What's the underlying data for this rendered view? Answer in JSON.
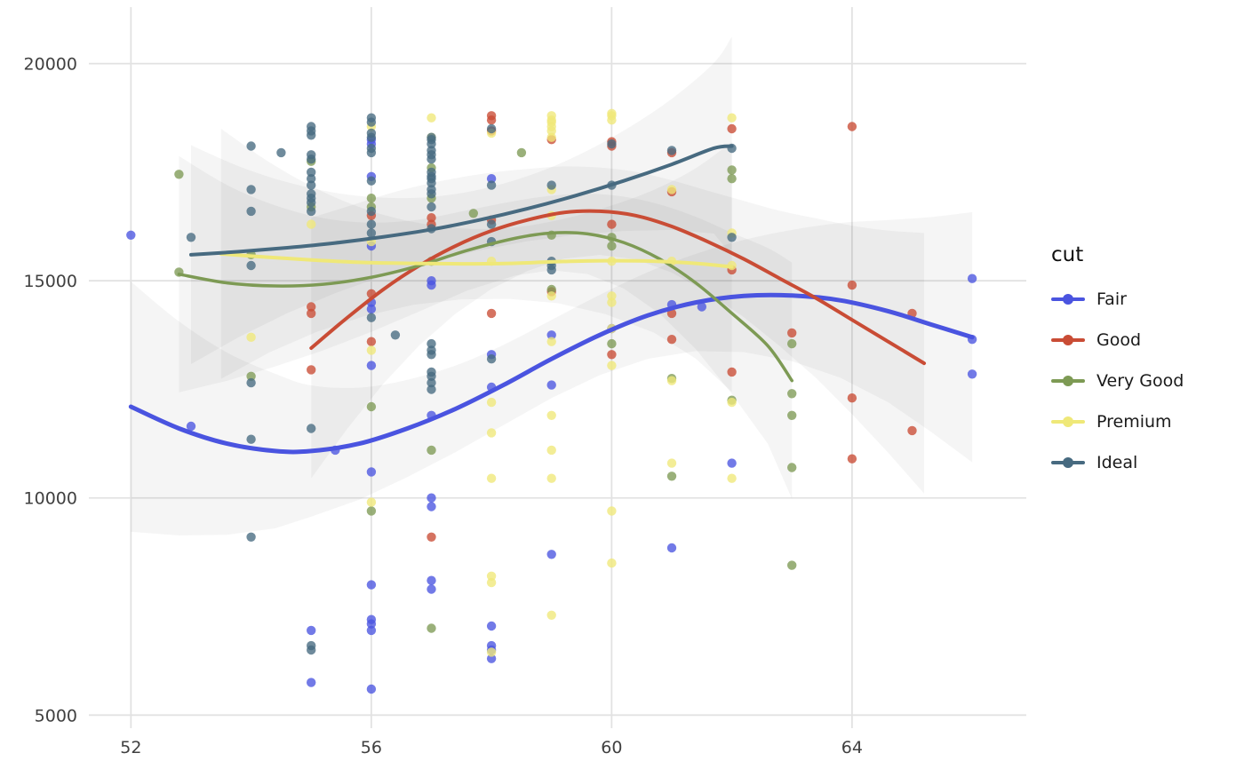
{
  "chart_data": {
    "type": "scatter",
    "title": "",
    "xlabel": "",
    "ylabel": "",
    "legend": {
      "title": "cut",
      "position": "right"
    },
    "axes": {
      "x": {
        "ticks": [
          52,
          56,
          60,
          64
        ],
        "range": [
          51.3,
          66.9
        ]
      },
      "y": {
        "ticks": [
          5000,
          10000,
          15000,
          20000
        ],
        "range": [
          4700,
          21300
        ]
      }
    },
    "grid": {
      "show": true,
      "color": "#e2e2e2"
    },
    "panel_background": "#ffffff",
    "confidence_band_color": "#000000",
    "series": [
      {
        "name": "Fair",
        "color": "#4a54e0",
        "linewidth": 5,
        "points": [
          [
            52,
            16050
          ],
          [
            53,
            11650
          ],
          [
            55,
            6950
          ],
          [
            55,
            5750
          ],
          [
            55.4,
            11100
          ],
          [
            56,
            18250
          ],
          [
            56,
            18150
          ],
          [
            56,
            17400
          ],
          [
            56,
            15800
          ],
          [
            56,
            14500
          ],
          [
            56,
            14350
          ],
          [
            56,
            13050
          ],
          [
            56,
            10600
          ],
          [
            56,
            8000
          ],
          [
            56,
            7200
          ],
          [
            56,
            7100
          ],
          [
            56,
            6950
          ],
          [
            56,
            5600
          ],
          [
            57,
            15000
          ],
          [
            57,
            14900
          ],
          [
            57,
            11900
          ],
          [
            57,
            10000
          ],
          [
            57,
            9800
          ],
          [
            57,
            8100
          ],
          [
            57,
            7900
          ],
          [
            58,
            17350
          ],
          [
            58,
            13300
          ],
          [
            58,
            12550
          ],
          [
            58,
            7050
          ],
          [
            58,
            6600
          ],
          [
            58,
            6500
          ],
          [
            58,
            6300
          ],
          [
            59,
            13750
          ],
          [
            59,
            12600
          ],
          [
            59,
            8700
          ],
          [
            60,
            13900
          ],
          [
            61,
            14450
          ],
          [
            61,
            8850
          ],
          [
            61.5,
            14400
          ],
          [
            62,
            10800
          ],
          [
            66,
            15050
          ],
          [
            66,
            13650
          ],
          [
            66,
            12850
          ]
        ],
        "smooth": [
          [
            52,
            12100
          ],
          [
            52.8,
            11600
          ],
          [
            53.6,
            11250
          ],
          [
            54.4,
            11080
          ],
          [
            55,
            11080
          ],
          [
            55.8,
            11250
          ],
          [
            56.6,
            11600
          ],
          [
            57.4,
            12050
          ],
          [
            58.2,
            12600
          ],
          [
            59,
            13200
          ],
          [
            59.8,
            13750
          ],
          [
            60.6,
            14200
          ],
          [
            61.4,
            14500
          ],
          [
            62.2,
            14650
          ],
          [
            63,
            14660
          ],
          [
            63.8,
            14550
          ],
          [
            64.6,
            14300
          ],
          [
            65.3,
            14000
          ],
          [
            66,
            13700
          ]
        ]
      },
      {
        "name": "Good",
        "color": "#c94c35",
        "linewidth": 4,
        "points": [
          [
            55,
            14400
          ],
          [
            55,
            14250
          ],
          [
            55,
            12950
          ],
          [
            56,
            16500
          ],
          [
            56,
            14700
          ],
          [
            56,
            13600
          ],
          [
            57,
            16450
          ],
          [
            57,
            16300
          ],
          [
            57,
            9100
          ],
          [
            58,
            18800
          ],
          [
            58,
            18700
          ],
          [
            58,
            18450
          ],
          [
            58,
            16400
          ],
          [
            58,
            14250
          ],
          [
            59,
            18250
          ],
          [
            59,
            14750
          ],
          [
            60,
            18200
          ],
          [
            60,
            18100
          ],
          [
            60,
            16300
          ],
          [
            60,
            13300
          ],
          [
            61,
            17950
          ],
          [
            61,
            17050
          ],
          [
            61,
            14250
          ],
          [
            61,
            13650
          ],
          [
            62,
            18500
          ],
          [
            62,
            15250
          ],
          [
            62,
            12900
          ],
          [
            63,
            13800
          ],
          [
            64,
            18550
          ],
          [
            64,
            14900
          ],
          [
            64,
            12300
          ],
          [
            64,
            10900
          ],
          [
            65,
            14250
          ],
          [
            65,
            11550
          ]
        ],
        "smooth": [
          [
            55,
            13450
          ],
          [
            55.6,
            14150
          ],
          [
            56.2,
            14800
          ],
          [
            56.8,
            15350
          ],
          [
            57.4,
            15800
          ],
          [
            58,
            16150
          ],
          [
            58.6,
            16400
          ],
          [
            59.2,
            16570
          ],
          [
            59.8,
            16600
          ],
          [
            60.4,
            16500
          ],
          [
            61,
            16250
          ],
          [
            61.6,
            15900
          ],
          [
            62.2,
            15500
          ],
          [
            62.8,
            15050
          ],
          [
            63.4,
            14600
          ],
          [
            64,
            14100
          ],
          [
            64.6,
            13600
          ],
          [
            65.2,
            13100
          ]
        ]
      },
      {
        "name": "Very Good",
        "color": "#7d9a54",
        "linewidth": 3.5,
        "points": [
          [
            52.8,
            17450
          ],
          [
            52.8,
            15200
          ],
          [
            54,
            15600
          ],
          [
            54,
            12800
          ],
          [
            55,
            17750
          ],
          [
            55,
            16700
          ],
          [
            56,
            16900
          ],
          [
            56,
            16700
          ],
          [
            56,
            12100
          ],
          [
            56,
            9700
          ],
          [
            57,
            17600
          ],
          [
            57,
            16900
          ],
          [
            57,
            15450
          ],
          [
            57,
            11100
          ],
          [
            57,
            7000
          ],
          [
            57.7,
            16550
          ],
          [
            58.5,
            17950
          ],
          [
            59,
            16050
          ],
          [
            59,
            14800
          ],
          [
            60,
            16000
          ],
          [
            60,
            15800
          ],
          [
            60,
            13550
          ],
          [
            61,
            12750
          ],
          [
            61,
            10500
          ],
          [
            62,
            17550
          ],
          [
            62,
            17350
          ],
          [
            62,
            12250
          ],
          [
            63,
            13550
          ],
          [
            63,
            12400
          ],
          [
            63,
            11900
          ],
          [
            63,
            10700
          ],
          [
            63,
            8450
          ]
        ],
        "smooth": [
          [
            52.8,
            15150
          ],
          [
            53.6,
            14950
          ],
          [
            54.4,
            14880
          ],
          [
            55.2,
            14920
          ],
          [
            56,
            15080
          ],
          [
            56.8,
            15350
          ],
          [
            57.6,
            15700
          ],
          [
            58.4,
            15980
          ],
          [
            59,
            16100
          ],
          [
            59.6,
            16080
          ],
          [
            60.2,
            15880
          ],
          [
            60.8,
            15500
          ],
          [
            61.4,
            14950
          ],
          [
            62,
            14250
          ],
          [
            62.6,
            13500
          ],
          [
            63,
            12700
          ]
        ]
      },
      {
        "name": "Premium",
        "color": "#efe878",
        "linewidth": 4,
        "points": [
          [
            54,
            13700
          ],
          [
            55,
            16300
          ],
          [
            56,
            18550
          ],
          [
            56,
            15900
          ],
          [
            56,
            13400
          ],
          [
            56,
            9900
          ],
          [
            57,
            18750
          ],
          [
            57,
            18300
          ],
          [
            58,
            18400
          ],
          [
            58,
            15450
          ],
          [
            58,
            12200
          ],
          [
            58,
            11500
          ],
          [
            58,
            10450
          ],
          [
            58,
            8200
          ],
          [
            58,
            8050
          ],
          [
            58,
            6450
          ],
          [
            59,
            18800
          ],
          [
            59,
            18700
          ],
          [
            59,
            18650
          ],
          [
            59,
            18550
          ],
          [
            59,
            18450
          ],
          [
            59,
            18300
          ],
          [
            59,
            17100
          ],
          [
            59,
            16500
          ],
          [
            59,
            14650
          ],
          [
            59,
            13600
          ],
          [
            59,
            11900
          ],
          [
            59,
            11100
          ],
          [
            59,
            10450
          ],
          [
            59,
            7300
          ],
          [
            60,
            18850
          ],
          [
            60,
            18800
          ],
          [
            60,
            18700
          ],
          [
            60,
            15450
          ],
          [
            60,
            14650
          ],
          [
            60,
            14500
          ],
          [
            60,
            13900
          ],
          [
            60,
            13050
          ],
          [
            60,
            9700
          ],
          [
            60,
            8500
          ],
          [
            61,
            17100
          ],
          [
            61,
            15450
          ],
          [
            61,
            12700
          ],
          [
            61,
            10800
          ],
          [
            62,
            18750
          ],
          [
            62,
            16100
          ],
          [
            62,
            15350
          ],
          [
            62,
            12200
          ],
          [
            62,
            10450
          ]
        ],
        "smooth": [
          [
            53.5,
            15620
          ],
          [
            54.3,
            15540
          ],
          [
            55.1,
            15470
          ],
          [
            55.9,
            15420
          ],
          [
            56.7,
            15400
          ],
          [
            57.5,
            15390
          ],
          [
            58.3,
            15400
          ],
          [
            59.1,
            15440
          ],
          [
            59.9,
            15460
          ],
          [
            60.7,
            15450
          ],
          [
            61.4,
            15400
          ],
          [
            62,
            15320
          ]
        ]
      },
      {
        "name": "Ideal",
        "color": "#476a80",
        "linewidth": 4,
        "points": [
          [
            53,
            16000
          ],
          [
            54,
            18100
          ],
          [
            54,
            17100
          ],
          [
            54,
            16600
          ],
          [
            54,
            15350
          ],
          [
            54,
            12650
          ],
          [
            54,
            11350
          ],
          [
            54,
            9100
          ],
          [
            54.5,
            17950
          ],
          [
            55,
            18550
          ],
          [
            55,
            18450
          ],
          [
            55,
            18350
          ],
          [
            55,
            17900
          ],
          [
            55,
            17800
          ],
          [
            55,
            17500
          ],
          [
            55,
            17350
          ],
          [
            55,
            17200
          ],
          [
            55,
            17000
          ],
          [
            55,
            16900
          ],
          [
            55,
            16800
          ],
          [
            55,
            16600
          ],
          [
            55,
            11600
          ],
          [
            55,
            6600
          ],
          [
            55,
            6500
          ],
          [
            56,
            18750
          ],
          [
            56,
            18650
          ],
          [
            56,
            18400
          ],
          [
            56,
            18300
          ],
          [
            56,
            18050
          ],
          [
            56,
            17950
          ],
          [
            56,
            17300
          ],
          [
            56,
            16600
          ],
          [
            56,
            16300
          ],
          [
            56,
            16100
          ],
          [
            56,
            14150
          ],
          [
            56.4,
            13750
          ],
          [
            57,
            18300
          ],
          [
            57,
            18250
          ],
          [
            57,
            18150
          ],
          [
            57,
            18000
          ],
          [
            57,
            17900
          ],
          [
            57,
            17800
          ],
          [
            57,
            17500
          ],
          [
            57,
            17400
          ],
          [
            57,
            17350
          ],
          [
            57,
            17250
          ],
          [
            57,
            17100
          ],
          [
            57,
            17000
          ],
          [
            57,
            16700
          ],
          [
            57,
            16200
          ],
          [
            57,
            13550
          ],
          [
            57,
            13400
          ],
          [
            57,
            13300
          ],
          [
            57,
            12900
          ],
          [
            57,
            12800
          ],
          [
            57,
            12650
          ],
          [
            57,
            12500
          ],
          [
            58,
            18500
          ],
          [
            58,
            17200
          ],
          [
            58,
            16300
          ],
          [
            58,
            15900
          ],
          [
            58,
            13200
          ],
          [
            59,
            17200
          ],
          [
            59,
            15450
          ],
          [
            59,
            15350
          ],
          [
            59,
            15250
          ],
          [
            60,
            18150
          ],
          [
            60,
            17200
          ],
          [
            61,
            18000
          ],
          [
            62,
            18050
          ],
          [
            62,
            16000
          ]
        ],
        "smooth": [
          [
            53,
            15600
          ],
          [
            53.8,
            15670
          ],
          [
            54.6,
            15760
          ],
          [
            55.4,
            15870
          ],
          [
            56.2,
            16010
          ],
          [
            57,
            16180
          ],
          [
            57.8,
            16400
          ],
          [
            58.6,
            16660
          ],
          [
            59.4,
            16960
          ],
          [
            60.2,
            17300
          ],
          [
            61,
            17680
          ],
          [
            61.7,
            18050
          ],
          [
            62,
            18100
          ]
        ]
      }
    ]
  }
}
